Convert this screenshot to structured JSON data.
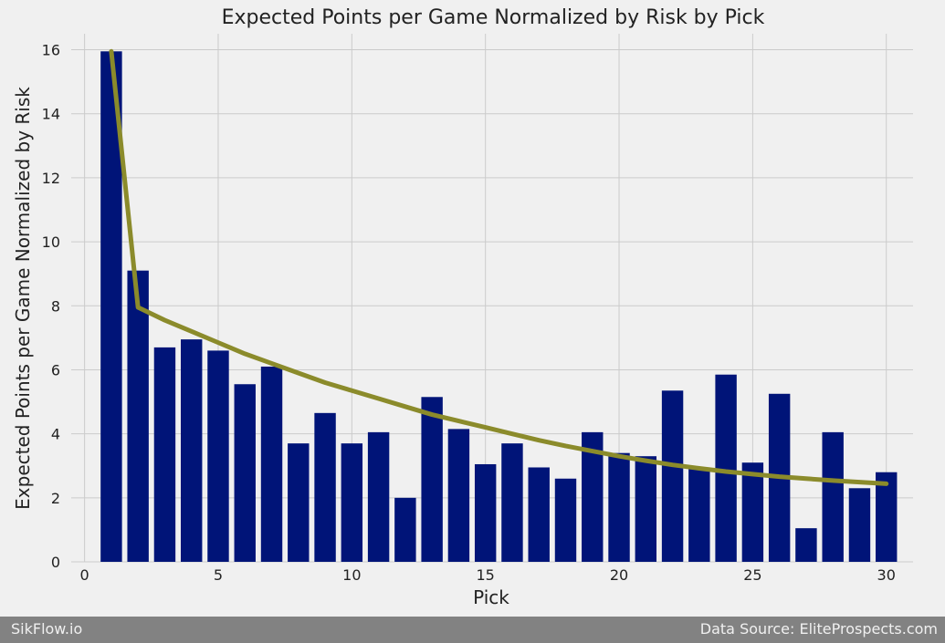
{
  "chart_data": {
    "type": "bar",
    "title": "Expected Points per Game Normalized by Risk by Pick",
    "xlabel": "Pick",
    "ylabel": "Expected Points per Game Normalized by Risk",
    "xlim": [
      -0.5,
      31
    ],
    "ylim": [
      0,
      16.5
    ],
    "xticks": [
      0,
      5,
      10,
      15,
      20,
      25,
      30
    ],
    "yticks": [
      0,
      2,
      4,
      6,
      8,
      10,
      12,
      14,
      16
    ],
    "grid": true,
    "x": [
      1,
      2,
      3,
      4,
      5,
      6,
      7,
      8,
      9,
      10,
      11,
      12,
      13,
      14,
      15,
      16,
      17,
      18,
      19,
      20,
      21,
      22,
      23,
      24,
      25,
      26,
      27,
      28,
      29,
      30
    ],
    "values": [
      15.95,
      9.1,
      6.7,
      6.95,
      6.6,
      5.55,
      6.1,
      3.7,
      4.65,
      3.7,
      4.05,
      2.0,
      5.15,
      4.15,
      3.05,
      3.7,
      2.95,
      2.6,
      4.05,
      3.4,
      3.3,
      5.35,
      2.95,
      5.85,
      3.1,
      5.25,
      1.05,
      4.05,
      2.3,
      2.8
    ],
    "fit_line": {
      "x": [
        1,
        2,
        3,
        4,
        5,
        6,
        7,
        8,
        9,
        10,
        11,
        12,
        13,
        14,
        15,
        16,
        17,
        18,
        19,
        20,
        21,
        22,
        23,
        24,
        25,
        26,
        27,
        28,
        29,
        30
      ],
      "y": [
        15.95,
        7.95,
        7.55,
        7.2,
        6.85,
        6.5,
        6.2,
        5.9,
        5.6,
        5.35,
        5.1,
        4.85,
        4.6,
        4.4,
        4.2,
        4.0,
        3.8,
        3.62,
        3.46,
        3.3,
        3.16,
        3.03,
        2.92,
        2.82,
        2.74,
        2.66,
        2.6,
        2.54,
        2.49,
        2.44
      ]
    },
    "bar_color": "#001478",
    "line_color": "#8b8b2b"
  },
  "footer": {
    "left": "SikFlow.io",
    "right": "Data Source: EliteProspects.com"
  }
}
